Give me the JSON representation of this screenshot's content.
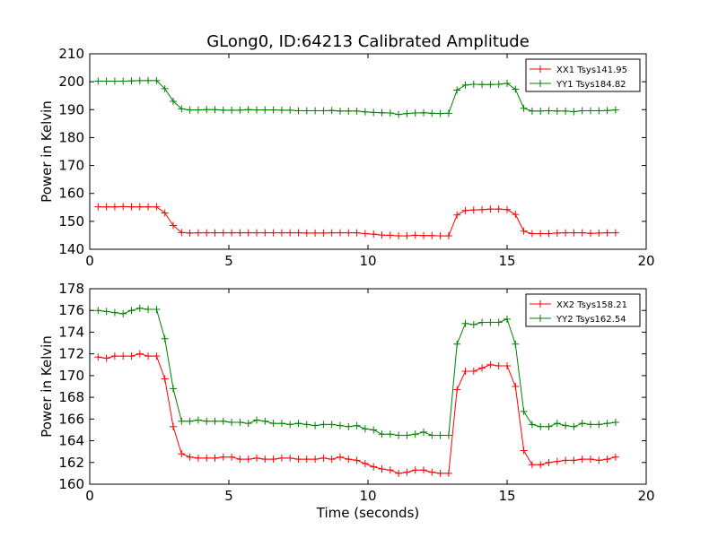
{
  "figure_title": "GLong0, ID:64213 Calibrated Amplitude",
  "chart_data": [
    {
      "type": "line",
      "title": "GLong0, ID:64213 Calibrated Amplitude",
      "xlabel": "",
      "ylabel": "Power in Kelvin",
      "xlim": [
        0,
        20
      ],
      "ylim": [
        140,
        210
      ],
      "xticks": [
        "0",
        "5",
        "10",
        "15",
        "20"
      ],
      "yticks": [
        "140",
        "150",
        "160",
        "170",
        "180",
        "190",
        "200",
        "210"
      ],
      "legend_position": "top-right",
      "marker": "+",
      "grid": false,
      "series": [
        {
          "name": "XX1 Tsys141.95",
          "color": "#ff0000",
          "x": [
            0.3,
            0.6,
            0.9,
            1.2,
            1.5,
            1.8,
            2.1,
            2.4,
            2.7,
            3.0,
            3.3,
            3.6,
            3.9,
            4.2,
            4.5,
            4.8,
            5.1,
            5.4,
            5.7,
            6.0,
            6.3,
            6.6,
            6.9,
            7.2,
            7.5,
            7.8,
            8.1,
            8.4,
            8.7,
            9.0,
            9.3,
            9.6,
            9.9,
            10.2,
            10.5,
            10.8,
            11.1,
            11.4,
            11.7,
            12.0,
            12.3,
            12.6,
            12.9,
            13.2,
            13.5,
            13.8,
            14.1,
            14.4,
            14.7,
            15.0,
            15.3,
            15.6,
            15.9,
            16.2,
            16.5,
            16.8,
            17.1,
            17.4,
            17.7,
            18.0,
            18.3,
            18.6,
            18.9
          ],
          "y": [
            155.2,
            155.2,
            155.2,
            155.3,
            155.2,
            155.2,
            155.2,
            155.2,
            153.0,
            148.5,
            146.0,
            145.8,
            145.9,
            145.9,
            145.9,
            145.9,
            145.9,
            145.9,
            145.9,
            145.9,
            145.9,
            145.9,
            145.9,
            145.9,
            145.9,
            145.8,
            145.8,
            145.8,
            145.9,
            145.9,
            145.9,
            145.9,
            145.6,
            145.4,
            145.1,
            145.0,
            144.8,
            144.8,
            145.0,
            144.9,
            144.9,
            144.8,
            144.8,
            152.3,
            153.9,
            154.1,
            154.2,
            154.4,
            154.4,
            154.2,
            152.5,
            146.5,
            145.6,
            145.6,
            145.6,
            145.8,
            145.9,
            145.9,
            145.9,
            145.7,
            145.8,
            145.9,
            145.9
          ]
        },
        {
          "name": "YY1 Tsys184.82",
          "color": "#008000",
          "x": [
            0.3,
            0.6,
            0.9,
            1.2,
            1.5,
            1.8,
            2.1,
            2.4,
            2.7,
            3.0,
            3.3,
            3.6,
            3.9,
            4.2,
            4.5,
            4.8,
            5.1,
            5.4,
            5.7,
            6.0,
            6.3,
            6.6,
            6.9,
            7.2,
            7.5,
            7.8,
            8.1,
            8.4,
            8.7,
            9.0,
            9.3,
            9.6,
            9.9,
            10.2,
            10.5,
            10.8,
            11.1,
            11.4,
            11.7,
            12.0,
            12.3,
            12.6,
            12.9,
            13.2,
            13.5,
            13.8,
            14.1,
            14.4,
            14.7,
            15.0,
            15.3,
            15.6,
            15.9,
            16.2,
            16.5,
            16.8,
            17.1,
            17.4,
            17.7,
            18.0,
            18.3,
            18.6,
            18.9
          ],
          "y": [
            200.2,
            200.2,
            200.2,
            200.2,
            200.3,
            200.4,
            200.4,
            200.4,
            197.5,
            193.0,
            190.3,
            189.9,
            189.9,
            190.0,
            190.0,
            189.8,
            189.8,
            189.8,
            190.0,
            189.9,
            189.9,
            189.9,
            189.8,
            189.8,
            189.6,
            189.6,
            189.6,
            189.6,
            189.7,
            189.5,
            189.5,
            189.5,
            189.2,
            189.0,
            188.9,
            188.8,
            188.3,
            188.6,
            188.8,
            188.9,
            188.7,
            188.6,
            188.7,
            197.0,
            198.8,
            199.1,
            199.0,
            199.0,
            199.1,
            199.4,
            197.3,
            190.5,
            189.5,
            189.5,
            189.6,
            189.5,
            189.5,
            189.3,
            189.6,
            189.6,
            189.6,
            189.7,
            189.9
          ]
        }
      ]
    },
    {
      "type": "line",
      "title": "",
      "xlabel": "Time (seconds)",
      "ylabel": "Power in Kelvin",
      "xlim": [
        0,
        20
      ],
      "ylim": [
        160,
        178
      ],
      "xticks": [
        "0",
        "5",
        "10",
        "15",
        "20"
      ],
      "yticks": [
        "160",
        "162",
        "164",
        "166",
        "168",
        "170",
        "172",
        "174",
        "176",
        "178"
      ],
      "legend_position": "top-right",
      "marker": "+",
      "grid": false,
      "series": [
        {
          "name": "XX2 Tsys158.21",
          "color": "#ff0000",
          "x": [
            0.3,
            0.6,
            0.9,
            1.2,
            1.5,
            1.8,
            2.1,
            2.4,
            2.7,
            3.0,
            3.3,
            3.6,
            3.9,
            4.2,
            4.5,
            4.8,
            5.1,
            5.4,
            5.7,
            6.0,
            6.3,
            6.6,
            6.9,
            7.2,
            7.5,
            7.8,
            8.1,
            8.4,
            8.7,
            9.0,
            9.3,
            9.6,
            9.9,
            10.2,
            10.5,
            10.8,
            11.1,
            11.4,
            11.7,
            12.0,
            12.3,
            12.6,
            12.9,
            13.2,
            13.5,
            13.8,
            14.1,
            14.4,
            14.7,
            15.0,
            15.3,
            15.6,
            15.9,
            16.2,
            16.5,
            16.8,
            17.1,
            17.4,
            17.7,
            18.0,
            18.3,
            18.6,
            18.9
          ],
          "y": [
            171.7,
            171.6,
            171.8,
            171.8,
            171.8,
            172.0,
            171.8,
            171.8,
            169.7,
            165.3,
            162.8,
            162.5,
            162.4,
            162.4,
            162.4,
            162.5,
            162.5,
            162.3,
            162.3,
            162.4,
            162.3,
            162.3,
            162.4,
            162.4,
            162.3,
            162.3,
            162.3,
            162.4,
            162.3,
            162.5,
            162.3,
            162.2,
            161.9,
            161.6,
            161.4,
            161.3,
            161.0,
            161.1,
            161.3,
            161.3,
            161.1,
            161.0,
            161.0,
            168.7,
            170.4,
            170.4,
            170.7,
            171.0,
            170.9,
            170.9,
            169.0,
            163.1,
            161.8,
            161.8,
            162.0,
            162.1,
            162.2,
            162.2,
            162.3,
            162.3,
            162.2,
            162.3,
            162.5
          ]
        },
        {
          "name": "YY2 Tsys162.54",
          "color": "#008000",
          "x": [
            0.3,
            0.6,
            0.9,
            1.2,
            1.5,
            1.8,
            2.1,
            2.4,
            2.7,
            3.0,
            3.3,
            3.6,
            3.9,
            4.2,
            4.5,
            4.8,
            5.1,
            5.4,
            5.7,
            6.0,
            6.3,
            6.6,
            6.9,
            7.2,
            7.5,
            7.8,
            8.1,
            8.4,
            8.7,
            9.0,
            9.3,
            9.6,
            9.9,
            10.2,
            10.5,
            10.8,
            11.1,
            11.4,
            11.7,
            12.0,
            12.3,
            12.6,
            12.9,
            13.2,
            13.5,
            13.8,
            14.1,
            14.4,
            14.7,
            15.0,
            15.3,
            15.6,
            15.9,
            16.2,
            16.5,
            16.8,
            17.1,
            17.4,
            17.7,
            18.0,
            18.3,
            18.6,
            18.9
          ],
          "y": [
            176.0,
            175.9,
            175.8,
            175.7,
            176.0,
            176.2,
            176.1,
            176.1,
            173.4,
            168.8,
            165.8,
            165.8,
            165.9,
            165.8,
            165.8,
            165.8,
            165.7,
            165.7,
            165.6,
            165.9,
            165.8,
            165.6,
            165.6,
            165.5,
            165.6,
            165.5,
            165.4,
            165.5,
            165.5,
            165.4,
            165.3,
            165.4,
            165.1,
            165.0,
            164.6,
            164.6,
            164.5,
            164.5,
            164.6,
            164.8,
            164.5,
            164.5,
            164.5,
            172.9,
            174.8,
            174.7,
            174.9,
            174.9,
            174.9,
            175.2,
            172.9,
            166.7,
            165.5,
            165.3,
            165.3,
            165.6,
            165.4,
            165.3,
            165.6,
            165.5,
            165.5,
            165.6,
            165.7
          ]
        }
      ]
    }
  ]
}
